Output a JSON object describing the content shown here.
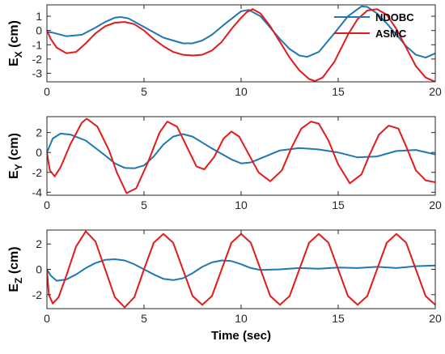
{
  "chart_data": [
    {
      "type": "line",
      "ylabel_main": "E",
      "ylabel_sub": "X",
      "ylabel_unit": " (cm)",
      "xlim": [
        0,
        20
      ],
      "ylim": [
        -3.6,
        1.8
      ],
      "xticks": [
        "0",
        "5",
        "10",
        "15",
        "20"
      ],
      "yticks": [
        "1",
        "0",
        "-1",
        "-2",
        "-3"
      ],
      "ytick_values": [
        1,
        0,
        -1,
        -2,
        -3
      ],
      "legend": "top-right",
      "series": [
        {
          "name": "NDOBC",
          "color": "#1f77b4",
          "x": [
            0,
            0.3,
            1,
            1.8,
            2.5,
            3,
            3.5,
            3.8,
            4.2,
            5,
            6,
            7,
            7.5,
            8,
            8.5,
            9.2,
            10,
            10.4,
            11,
            11.5,
            12,
            12.5,
            13,
            13.4,
            14,
            14.8,
            15.5,
            16.2,
            16.5,
            17,
            17.5,
            18,
            18.5,
            19,
            19.5,
            20
          ],
          "y": [
            -0.1,
            -0.15,
            -0.4,
            -0.3,
            0.2,
            0.6,
            0.9,
            0.95,
            0.85,
            0.25,
            -0.5,
            -0.9,
            -0.9,
            -0.7,
            -0.3,
            0.5,
            1.35,
            1.45,
            1.0,
            0.2,
            -0.6,
            -1.3,
            -1.75,
            -1.85,
            -1.5,
            -0.2,
            1.0,
            1.7,
            1.65,
            1.2,
            0.5,
            -0.3,
            -1.1,
            -1.7,
            -1.9,
            -1.6
          ]
        },
        {
          "name": "ASMC",
          "color": "#e31a1c",
          "x": [
            0,
            0.2,
            0.5,
            1,
            1.5,
            2,
            2.5,
            3,
            3.5,
            4,
            4.5,
            5,
            5.5,
            6,
            6.5,
            7,
            7.5,
            8,
            8.5,
            9,
            9.5,
            10,
            10.3,
            10.6,
            11,
            11.5,
            12,
            12.5,
            13,
            13.5,
            13.8,
            14.2,
            14.8,
            15.5,
            16,
            16.5,
            17,
            17.5,
            18,
            18.5,
            19,
            19.5,
            20
          ],
          "y": [
            0,
            -0.6,
            -1.2,
            -1.6,
            -1.5,
            -0.9,
            -0.2,
            0.3,
            0.55,
            0.6,
            0.45,
            0.0,
            -0.6,
            -1.1,
            -1.5,
            -1.7,
            -1.75,
            -1.7,
            -1.4,
            -0.8,
            0.1,
            0.9,
            1.3,
            1.5,
            1.2,
            0.3,
            -0.8,
            -1.9,
            -2.8,
            -3.4,
            -3.55,
            -3.3,
            -2.2,
            -0.3,
            0.8,
            1.4,
            1.5,
            1.1,
            0.1,
            -1.2,
            -2.5,
            -3.3,
            -3.6
          ]
        }
      ]
    },
    {
      "type": "line",
      "ylabel_main": "E",
      "ylabel_sub": "Y",
      "ylabel_unit": " (cm)",
      "xlim": [
        0,
        20
      ],
      "ylim": [
        -4.3,
        3.6
      ],
      "xticks": [
        "0",
        "5",
        "10",
        "15",
        "20"
      ],
      "yticks": [
        "2",
        "0",
        "-2",
        "-4"
      ],
      "ytick_values": [
        2,
        0,
        -2,
        -4
      ],
      "series": [
        {
          "name": "NDOBC",
          "color": "#1f77b4",
          "x": [
            0,
            0.3,
            0.7,
            1.2,
            2,
            3,
            3.5,
            4,
            4.5,
            5,
            5.5,
            6,
            6.5,
            7,
            7.5,
            8.5,
            9.5,
            10,
            10.5,
            11,
            12,
            13,
            14,
            15,
            16,
            17,
            18,
            19,
            20
          ],
          "y": [
            0,
            1.4,
            1.9,
            1.8,
            1.2,
            -0.3,
            -1.1,
            -1.55,
            -1.6,
            -1.3,
            -0.4,
            0.8,
            1.6,
            1.85,
            1.6,
            0.4,
            -0.7,
            -1.1,
            -1.0,
            -0.6,
            0.2,
            0.45,
            0.3,
            0.0,
            -0.5,
            -0.4,
            0.15,
            0.25,
            -0.2
          ]
        },
        {
          "name": "ASMC",
          "color": "#e31a1c",
          "x": [
            0,
            0.15,
            0.4,
            0.7,
            1.2,
            1.8,
            2.05,
            2.6,
            3.2,
            3.6,
            4.1,
            4.6,
            5.2,
            5.8,
            6.2,
            6.7,
            7.2,
            7.7,
            8.1,
            8.6,
            9.1,
            9.5,
            9.9,
            10.4,
            10.9,
            11.5,
            12.1,
            12.6,
            13.1,
            13.6,
            14.0,
            14.5,
            15.0,
            15.6,
            16.2,
            16.6,
            17.1,
            17.6,
            18.1,
            18.5,
            19.0,
            19.5,
            20
          ],
          "y": [
            0,
            -1.8,
            -2.4,
            -1.5,
            0.8,
            3.0,
            3.4,
            2.6,
            0.2,
            -2.0,
            -4.1,
            -3.6,
            -1.0,
            2.0,
            3.1,
            2.6,
            0.6,
            -1.4,
            -1.7,
            -0.5,
            1.4,
            2.1,
            1.6,
            -0.2,
            -2.0,
            -2.9,
            -1.8,
            0.5,
            2.4,
            3.1,
            2.9,
            1.2,
            -1.2,
            -3.1,
            -2.2,
            -0.3,
            1.8,
            2.7,
            2.4,
            0.6,
            -1.8,
            -2.8,
            -3.0
          ]
        }
      ]
    },
    {
      "type": "line",
      "ylabel_main": "E",
      "ylabel_sub": "Z",
      "ylabel_unit": " (cm)",
      "xlim": [
        0,
        20
      ],
      "ylim": [
        -3.1,
        3.1
      ],
      "xticks": [
        "0",
        "5",
        "10",
        "15",
        "20"
      ],
      "yticks": [
        "2",
        "0",
        "-2"
      ],
      "ytick_values": [
        2,
        0,
        -2
      ],
      "xlabel": "Time (sec)",
      "series": [
        {
          "name": "NDOBC",
          "color": "#1f77b4",
          "x": [
            0,
            0.2,
            0.5,
            1,
            1.5,
            2,
            2.5,
            3,
            3.5,
            4,
            4.5,
            5,
            5.5,
            6,
            6.5,
            7,
            7.5,
            8,
            8.5,
            9,
            9.5,
            10,
            10.5,
            11,
            12,
            13,
            14,
            15,
            16,
            17,
            18,
            19,
            20
          ],
          "y": [
            0,
            -0.5,
            -0.9,
            -0.8,
            -0.4,
            0.1,
            0.5,
            0.75,
            0.8,
            0.7,
            0.4,
            0.0,
            -0.4,
            -0.75,
            -0.85,
            -0.7,
            -0.3,
            0.2,
            0.55,
            0.7,
            0.65,
            0.4,
            0.1,
            -0.05,
            0.0,
            0.1,
            0.05,
            0.15,
            0.1,
            0.2,
            0.1,
            0.25,
            0.3
          ]
        },
        {
          "name": "ASMC",
          "color": "#e31a1c",
          "x": [
            0,
            0.1,
            0.3,
            0.6,
            1.0,
            1.5,
            2.0,
            2.5,
            3.0,
            3.5,
            4.0,
            4.5,
            5.0,
            5.5,
            6.0,
            6.5,
            7.0,
            7.5,
            8.0,
            8.5,
            9.0,
            9.5,
            10.0,
            10.5,
            11.0,
            11.5,
            12.0,
            12.5,
            13.0,
            13.5,
            14.0,
            14.5,
            15.0,
            15.5,
            16.0,
            16.5,
            17.0,
            17.5,
            18.0,
            18.5,
            19.0,
            19.5,
            20.0
          ],
          "y": [
            0,
            -2.0,
            -2.7,
            -2.2,
            -0.5,
            1.8,
            3.0,
            2.2,
            0.0,
            -2.2,
            -3.0,
            -2.2,
            0.0,
            2.1,
            2.8,
            2.1,
            0.0,
            -2.1,
            -2.8,
            -2.1,
            0.0,
            2.1,
            2.8,
            2.1,
            0.0,
            -2.1,
            -2.8,
            -2.1,
            0.0,
            2.1,
            2.8,
            2.1,
            0.0,
            -2.1,
            -2.8,
            -2.1,
            0.0,
            2.1,
            2.8,
            2.1,
            0.0,
            -2.1,
            -2.8
          ]
        }
      ]
    }
  ]
}
